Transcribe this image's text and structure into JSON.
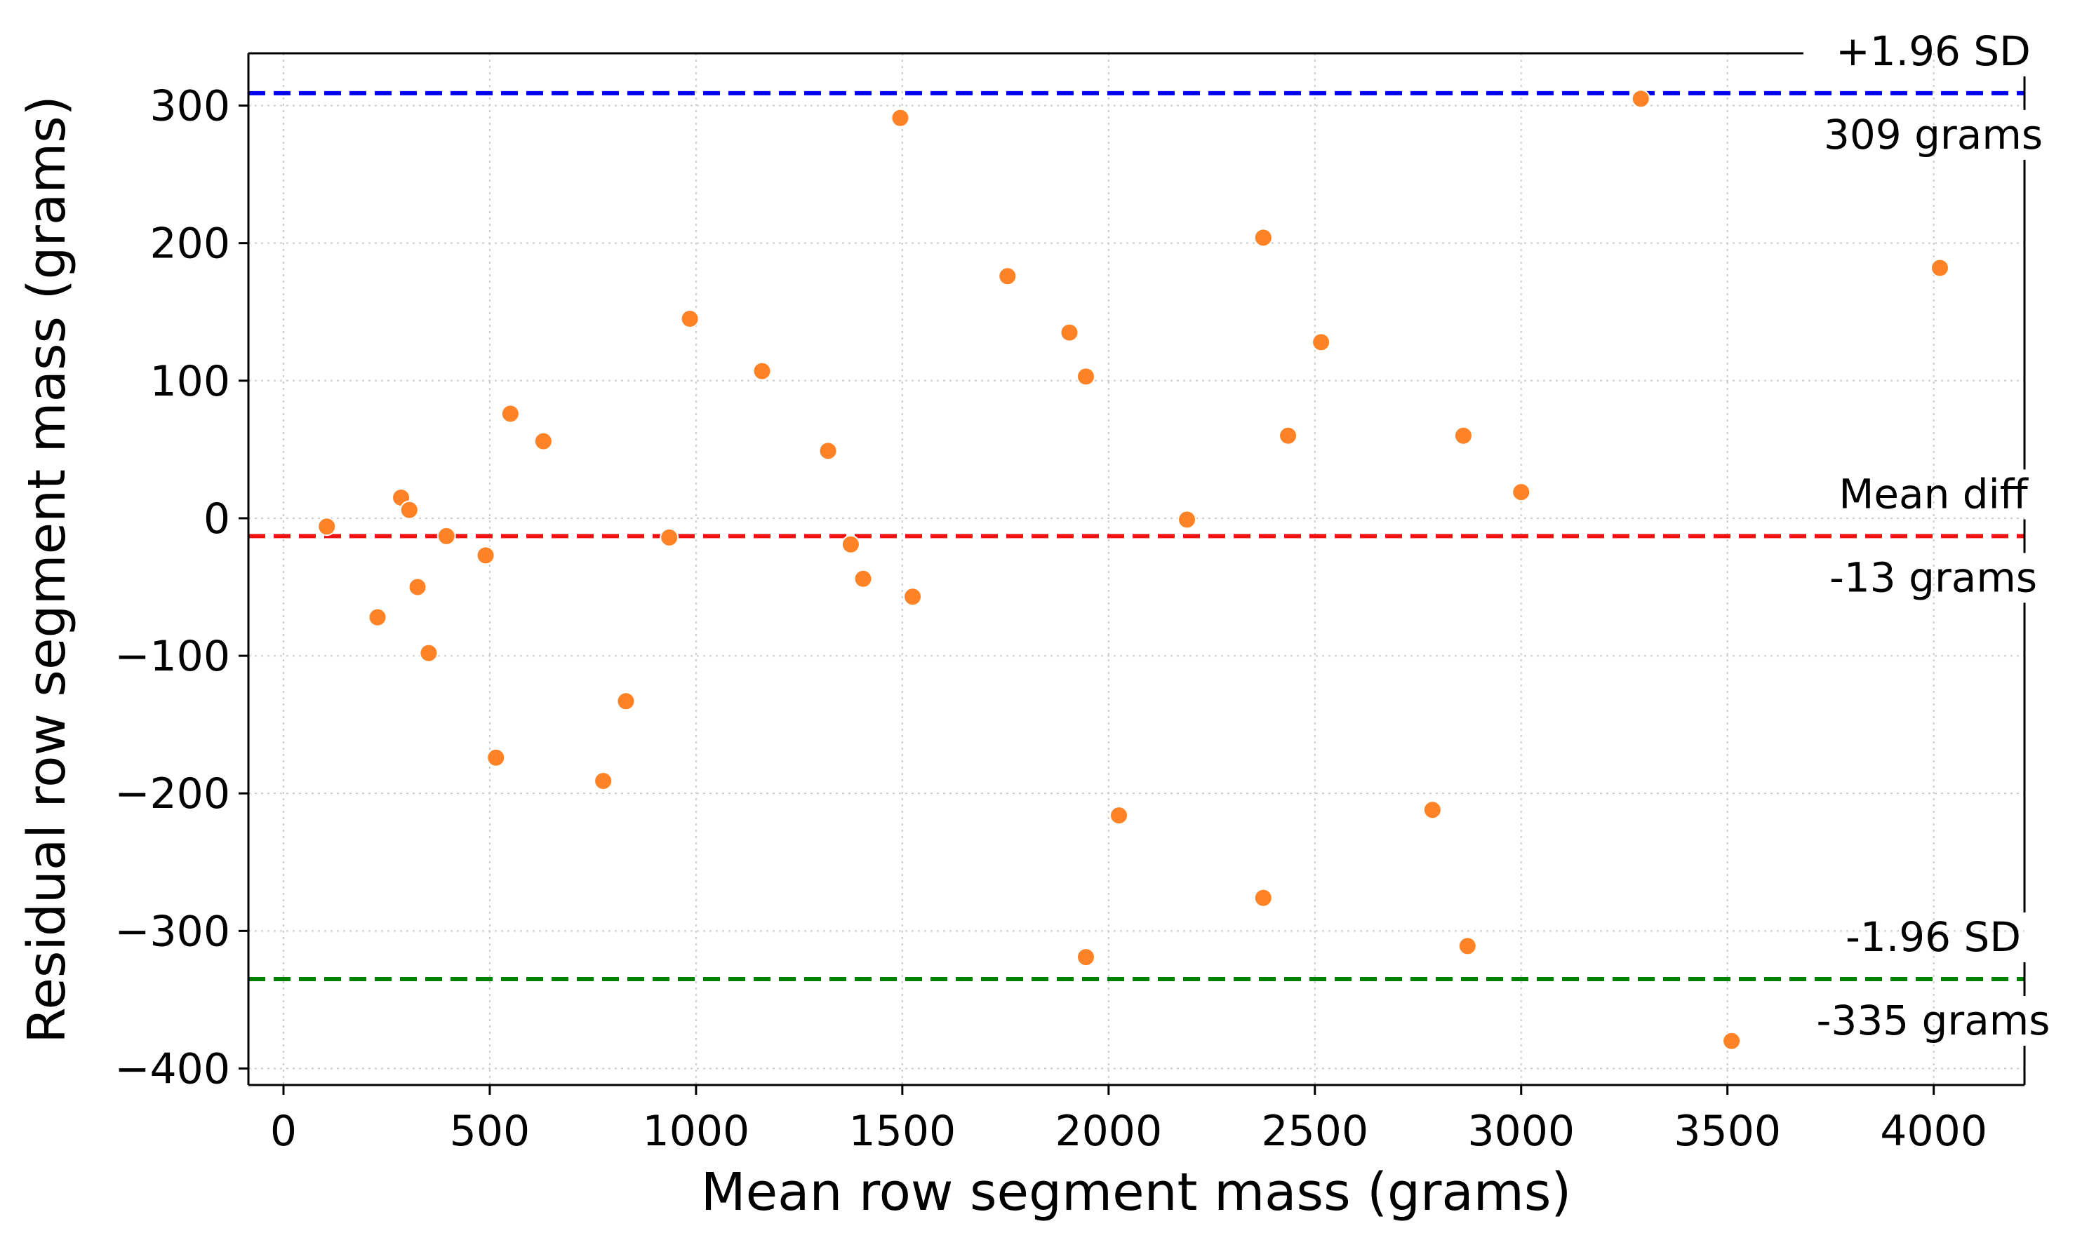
{
  "chart_data": {
    "type": "scatter",
    "title": "",
    "xlabel": "Mean row segment mass (grams)",
    "ylabel": "Residual row segment mass (grams)",
    "xlim": [
      -85,
      4220
    ],
    "ylim": [
      -412,
      338
    ],
    "xticks": [
      0,
      500,
      1000,
      1500,
      2000,
      2500,
      3000,
      3500,
      4000
    ],
    "yticks": [
      300,
      200,
      100,
      0,
      -100,
      -200,
      -300,
      -400
    ],
    "ytick_labels": [
      "300",
      "200",
      "100",
      "0",
      "−100",
      "−200",
      "−300",
      "−400"
    ],
    "grid": true,
    "series": [
      {
        "name": "residuals",
        "color": "#ff8326",
        "x": [
          105,
          228,
          285,
          305,
          325,
          352,
          395,
          490,
          515,
          550,
          630,
          775,
          830,
          935,
          985,
          1160,
          1320,
          1375,
          1405,
          1495,
          1525,
          1755,
          1905,
          1945,
          1945,
          2025,
          2190,
          2375,
          2375,
          2435,
          2515,
          2785,
          2860,
          2870,
          3000,
          3290,
          3510,
          4015
        ],
        "y": [
          -6,
          -72,
          15,
          6,
          -50,
          -98,
          -13,
          -27,
          -174,
          76,
          56,
          -191,
          -133,
          -14,
          145,
          107,
          49,
          -19,
          -44,
          291,
          -57,
          176,
          135,
          103,
          -319,
          -216,
          -1,
          204,
          -276,
          60,
          128,
          -212,
          60,
          -311,
          19,
          305,
          -380,
          182
        ]
      }
    ],
    "reference_lines": [
      {
        "name": "upper-limit",
        "value": 309,
        "color": "#0000ee",
        "label_top": "+1.96 SD",
        "label_bottom": "309 grams"
      },
      {
        "name": "mean-difference",
        "value": -13,
        "color": "#ee1111",
        "label_top": "Mean diff",
        "label_bottom": "-13 grams"
      },
      {
        "name": "lower-limit",
        "value": -335,
        "color": "#008000",
        "label_top": "-1.96 SD",
        "label_bottom": "-335 grams"
      }
    ]
  }
}
